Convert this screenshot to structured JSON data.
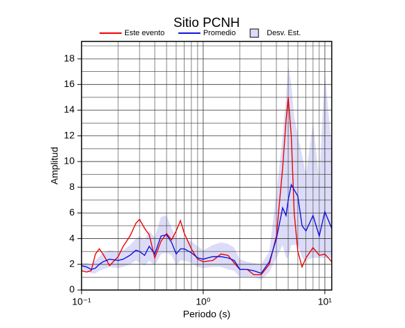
{
  "chart_data": {
    "type": "line",
    "title": "Sitio PCNH",
    "x_label": "Periodo (s)",
    "y_label": "Amplitud",
    "log_x": true,
    "grid": true,
    "x": [
      0.1,
      0.11,
      0.12,
      0.13,
      0.14,
      0.15,
      0.17,
      0.2,
      0.22,
      0.25,
      0.28,
      0.3,
      0.33,
      0.36,
      0.4,
      0.45,
      0.5,
      0.55,
      0.6,
      0.65,
      0.7,
      0.8,
      0.9,
      1.0,
      1.2,
      1.4,
      1.6,
      1.8,
      2.0,
      2.3,
      2.6,
      3.0,
      3.5,
      4.0,
      4.5,
      4.8,
      5.0,
      5.3,
      5.6,
      6.0,
      6.5,
      7.0,
      8.0,
      9.0,
      10.0,
      11.4
    ],
    "series": [
      {
        "name": "Este evento",
        "color": "#ee0000",
        "values": [
          1.5,
          1.4,
          1.5,
          2.8,
          3.2,
          2.8,
          1.9,
          2.6,
          3.4,
          4.2,
          5.2,
          5.5,
          4.8,
          4.3,
          2.5,
          3.8,
          4.4,
          3.9,
          4.6,
          5.4,
          4.4,
          3.2,
          2.4,
          2.2,
          2.3,
          2.8,
          2.7,
          2.1,
          1.6,
          1.6,
          1.2,
          1.2,
          2.0,
          4.2,
          9.5,
          13.2,
          15.0,
          12.0,
          6.0,
          3.0,
          1.8,
          2.5,
          3.3,
          2.7,
          2.8,
          2.2
        ]
      },
      {
        "name": "Promedio",
        "color": "#1010dd",
        "values": [
          1.9,
          1.8,
          1.6,
          1.7,
          2.0,
          2.2,
          2.4,
          2.3,
          2.4,
          2.7,
          3.1,
          3.0,
          2.7,
          3.4,
          2.8,
          4.2,
          4.3,
          3.7,
          2.8,
          3.2,
          3.2,
          2.9,
          2.5,
          2.4,
          2.6,
          2.6,
          2.5,
          2.3,
          1.6,
          1.6,
          1.5,
          1.3,
          2.2,
          4.0,
          6.4,
          5.8,
          7.0,
          8.2,
          7.8,
          7.3,
          5.0,
          4.6,
          5.8,
          4.2,
          6.1,
          4.8
        ]
      },
      {
        "name": "Desv. Est.",
        "color": "#dcdcf8",
        "upper": [
          2.1,
          2.1,
          2.0,
          2.3,
          2.6,
          2.9,
          3.1,
          3.0,
          3.1,
          3.5,
          4.0,
          4.2,
          3.9,
          4.6,
          4.1,
          5.7,
          5.8,
          4.8,
          4.0,
          4.1,
          4.0,
          3.8,
          3.4,
          3.1,
          3.5,
          3.7,
          3.6,
          3.3,
          2.4,
          2.2,
          2.1,
          2.0,
          3.0,
          7.5,
          12.0,
          15.0,
          17.5,
          16.0,
          13.5,
          12.0,
          10.5,
          9.0,
          13.0,
          8.5,
          17.0,
          11.0
        ],
        "lower": [
          1.6,
          1.5,
          1.3,
          1.3,
          1.5,
          1.6,
          1.8,
          1.7,
          1.8,
          2.0,
          2.3,
          2.1,
          1.9,
          2.3,
          1.9,
          2.8,
          2.9,
          2.7,
          1.9,
          2.3,
          2.3,
          2.1,
          1.8,
          1.7,
          1.8,
          1.8,
          1.6,
          1.5,
          1.0,
          1.0,
          1.0,
          0.8,
          1.4,
          2.5,
          3.5,
          2.5,
          2.5,
          3.5,
          3.5,
          3.5,
          2.5,
          2.3,
          2.5,
          2.5,
          2.5,
          2.5
        ]
      }
    ],
    "xlim": [
      0.1,
      11.4
    ],
    "xticks": [
      {
        "value": 0.1,
        "label": "10⁻¹"
      },
      {
        "value": 1,
        "label": "10⁰"
      },
      {
        "value": 10,
        "label": "10¹"
      }
    ],
    "xminorticks": [
      0.2,
      0.3,
      0.4,
      0.5,
      0.6,
      0.7,
      0.8,
      0.9,
      2,
      3,
      4,
      5,
      6,
      7,
      8,
      9
    ],
    "ylim": [
      0,
      19.35
    ],
    "yticks": [
      0,
      2,
      4,
      6,
      8,
      10,
      12,
      14,
      16,
      18
    ],
    "yminorticks": [
      1,
      3,
      5,
      7,
      9,
      11,
      13,
      15,
      17,
      19
    ]
  }
}
